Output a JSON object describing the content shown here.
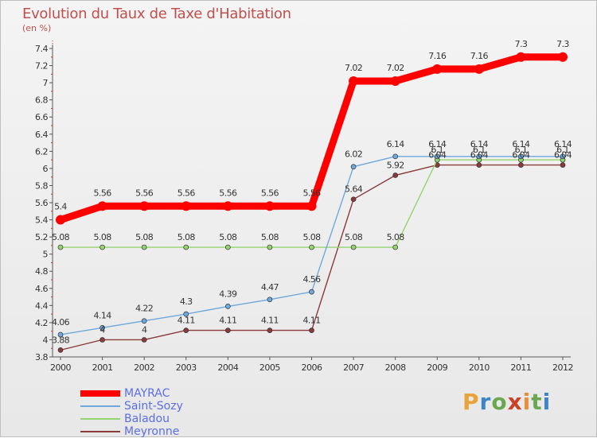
{
  "chart_data": {
    "type": "line",
    "title": "Evolution du Taux de Taxe d'Habitation",
    "unit_label": "(en %)",
    "x": [
      "2000",
      "2001",
      "2002",
      "2003",
      "2004",
      "2005",
      "2006",
      "2007",
      "2008",
      "2009",
      "2010",
      "2011",
      "2012"
    ],
    "ylim": [
      3.8,
      7.4
    ],
    "y_ticks": [
      "3.8",
      "4",
      "4.2",
      "4.4",
      "4.6",
      "4.8",
      "5",
      "5.2",
      "5.4",
      "5.6",
      "5.8",
      "6",
      "6.2",
      "6.4",
      "6.6",
      "6.8",
      "7",
      "7.2",
      "7.4"
    ],
    "grid": false,
    "legend_position": "bottom-left",
    "series": [
      {
        "name": "MAYRAC",
        "color": "#ff0000",
        "values": [
          5.4,
          5.56,
          5.56,
          5.56,
          5.56,
          5.56,
          5.56,
          7.02,
          7.02,
          7.16,
          7.16,
          7.3,
          7.3
        ],
        "labels": [
          "5.4",
          "5.56",
          "5.56",
          "5.56",
          "5.56",
          "5.56",
          "5.56",
          "7.02",
          "7.02",
          "7.16",
          "7.16",
          "7.3",
          "7.3"
        ]
      },
      {
        "name": "Saint-Sozy",
        "color": "#6fa8dc",
        "values": [
          4.06,
          4.14,
          4.22,
          4.3,
          4.39,
          4.47,
          4.56,
          6.02,
          6.14,
          6.14,
          6.14,
          6.14,
          6.14
        ],
        "labels": [
          "4.06",
          "4.14",
          "4.22",
          "4.3",
          "4.39",
          "4.47",
          "4.56",
          "6.02",
          "6.14",
          "6.14",
          "6.14",
          "6.14",
          "6.14"
        ]
      },
      {
        "name": "Baladou",
        "color": "#93d46e",
        "values": [
          5.08,
          5.08,
          5.08,
          5.08,
          5.08,
          5.08,
          5.08,
          5.08,
          5.08,
          6.1,
          6.1,
          6.1,
          6.1
        ],
        "labels": [
          "5.08",
          "5.08",
          "5.08",
          "5.08",
          "5.08",
          "5.08",
          "5.08",
          "5.08",
          "5.08",
          "6.1",
          "6.1",
          "6.1",
          "6.1"
        ]
      },
      {
        "name": "Meyronne",
        "color": "#8b3a3a",
        "values": [
          3.88,
          4.0,
          4.0,
          4.11,
          4.11,
          4.11,
          4.11,
          5.64,
          5.92,
          6.04,
          6.04,
          6.04,
          6.04
        ],
        "labels": [
          "3.88",
          "4",
          "4",
          "4.11",
          "4.11",
          "4.11",
          "4.11",
          "5.64",
          "5.92",
          "6.04",
          "6.04",
          "6.04",
          "6.04"
        ]
      }
    ]
  },
  "logo": {
    "text": "Proxiti"
  }
}
